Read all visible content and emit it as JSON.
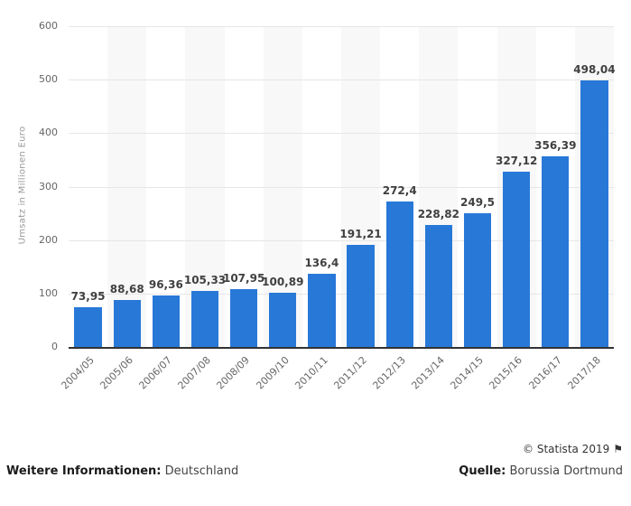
{
  "chart_data": {
    "type": "bar",
    "title": "",
    "xlabel": "",
    "ylabel": "Umsatz in Millionen Euro",
    "categories": [
      "2004/05",
      "2005/06",
      "2006/07",
      "2007/08",
      "2008/09",
      "2009/10",
      "2010/11",
      "2011/12",
      "2012/13",
      "2013/14",
      "2014/15",
      "2015/16",
      "2016/17",
      "2017/18"
    ],
    "values": [
      73.95,
      88.68,
      96.36,
      105.33,
      107.95,
      100.89,
      136.4,
      191.21,
      272.4,
      228.82,
      249.5,
      327.12,
      356.39,
      498.04
    ],
    "value_labels": [
      "73,95",
      "88,68",
      "96,36",
      "105,33",
      "107,95",
      "100,89",
      "136,4",
      "191,21",
      "272,4",
      "228,82",
      "249,5",
      "327,12",
      "356,39",
      "498,04"
    ],
    "y_ticks": [
      0,
      100,
      200,
      300,
      400,
      500,
      600
    ],
    "ylim": [
      0,
      600
    ],
    "grid": true,
    "legend": "none",
    "bar_color": "#2878d8",
    "band_color": "#f8f8f8",
    "gridline_color": "#e6e6e6"
  },
  "footer": {
    "copyright": "© Statista 2019",
    "flag_icon": "⚑",
    "info_label": "Weitere Informationen:",
    "info_value": "Deutschland",
    "source_label": "Quelle:",
    "source_value": "Borussia Dortmund"
  }
}
